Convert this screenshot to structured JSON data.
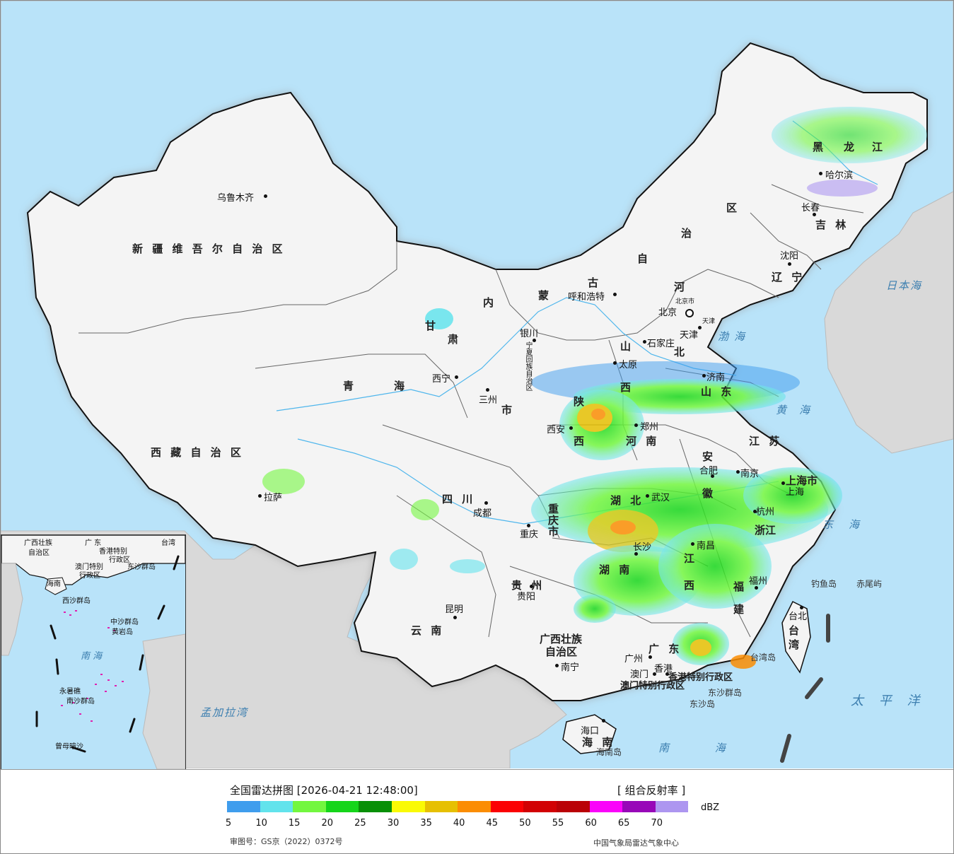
{
  "map": {
    "provinces": [
      {
        "id": "xinjiang",
        "text": "新 疆 维 吾 尔 自 治 区"
      },
      {
        "id": "xizang",
        "text": "西 藏 自 治 区"
      },
      {
        "id": "qinghai-1",
        "text": "青"
      },
      {
        "id": "qinghai-2",
        "text": "海"
      },
      {
        "id": "gansu-1",
        "text": "甘"
      },
      {
        "id": "gansu-2",
        "text": "肃"
      },
      {
        "id": "neimeng-1",
        "text": "内"
      },
      {
        "id": "neimeng-2",
        "text": "蒙"
      },
      {
        "id": "neimeng-3",
        "text": "古"
      },
      {
        "id": "neimeng-4",
        "text": "自"
      },
      {
        "id": "neimeng-5",
        "text": "治"
      },
      {
        "id": "neimeng-6",
        "text": "区"
      },
      {
        "id": "heilongjiang-1",
        "text": "黑"
      },
      {
        "id": "heilongjiang-2",
        "text": "龙"
      },
      {
        "id": "heilongjiang-3",
        "text": "江"
      },
      {
        "id": "jilin",
        "text": "吉 林"
      },
      {
        "id": "liaoning",
        "text": "辽 宁"
      },
      {
        "id": "hebei-1",
        "text": "河"
      },
      {
        "id": "hebei-2",
        "text": "北"
      },
      {
        "id": "shanxi-1",
        "text": "山"
      },
      {
        "id": "shanxi-2",
        "text": "西"
      },
      {
        "id": "shandong",
        "text": "山 东"
      },
      {
        "id": "henan",
        "text": "河 南"
      },
      {
        "id": "shaanxi-1",
        "text": "陕"
      },
      {
        "id": "shaanxi-2",
        "text": "西"
      },
      {
        "id": "sichuan",
        "text": "四 川"
      },
      {
        "id": "hubei",
        "text": "湖 北"
      },
      {
        "id": "hunan",
        "text": "湖 南"
      },
      {
        "id": "anhui-1",
        "text": "安"
      },
      {
        "id": "anhui-2",
        "text": "徽"
      },
      {
        "id": "jiangsu",
        "text": "江 苏"
      },
      {
        "id": "shanghai",
        "text": "上海市"
      },
      {
        "id": "zhejiang",
        "text": "浙江"
      },
      {
        "id": "jiangxi-1",
        "text": "江"
      },
      {
        "id": "jiangxi-2",
        "text": "西"
      },
      {
        "id": "fujian-1",
        "text": "福"
      },
      {
        "id": "fujian-2",
        "text": "建"
      },
      {
        "id": "guizhou",
        "text": "贵 州"
      },
      {
        "id": "yunnan",
        "text": "云 南"
      },
      {
        "id": "guangxi-1",
        "text": "广西壮族"
      },
      {
        "id": "guangxi-2",
        "text": "自治区"
      },
      {
        "id": "guangdong",
        "text": "广 东"
      },
      {
        "id": "chongqing-1",
        "text": "重"
      },
      {
        "id": "chongqing-2",
        "text": "庆"
      },
      {
        "id": "chongqing-3",
        "text": "市"
      },
      {
        "id": "ningxia",
        "text": "宁夏回族自治区"
      },
      {
        "id": "gansu-shi",
        "text": "市"
      },
      {
        "id": "hainan",
        "text": "海 南"
      },
      {
        "id": "taiwan-1",
        "text": "台"
      },
      {
        "id": "taiwan-2",
        "text": "湾"
      },
      {
        "id": "hk",
        "text": "香港特别行政区"
      },
      {
        "id": "macao",
        "text": "澳门特别行政区"
      },
      {
        "id": "beijing-shi",
        "text": "北京市"
      },
      {
        "id": "tianjin-shi",
        "text": "天津"
      }
    ],
    "cities": [
      {
        "id": "urumqi",
        "text": "乌鲁木齐"
      },
      {
        "id": "lhasa",
        "text": "拉萨"
      },
      {
        "id": "xining",
        "text": "西宁"
      },
      {
        "id": "lanzhou",
        "text": "三州"
      },
      {
        "id": "yinchuan",
        "text": "银川"
      },
      {
        "id": "huhehaote",
        "text": "呼和浩特"
      },
      {
        "id": "harbin",
        "text": "哈尔滨"
      },
      {
        "id": "changchun",
        "text": "长春"
      },
      {
        "id": "shenyang",
        "text": "沈阳"
      },
      {
        "id": "beijing",
        "text": "北京"
      },
      {
        "id": "tianjin",
        "text": "天津"
      },
      {
        "id": "shijiazhuang",
        "text": "石家庄"
      },
      {
        "id": "taiyuan",
        "text": "太原"
      },
      {
        "id": "jinan",
        "text": "济南"
      },
      {
        "id": "zhengzhou",
        "text": "郑州"
      },
      {
        "id": "xian",
        "text": "西安"
      },
      {
        "id": "chengdu",
        "text": "成都"
      },
      {
        "id": "chongqing",
        "text": "重庆"
      },
      {
        "id": "wuhan",
        "text": "武汉"
      },
      {
        "id": "hefei",
        "text": "合肥"
      },
      {
        "id": "nanjing",
        "text": "南京"
      },
      {
        "id": "shanghai-c",
        "text": "上海"
      },
      {
        "id": "hangzhou",
        "text": "杭州"
      },
      {
        "id": "nanchang",
        "text": "南昌"
      },
      {
        "id": "changsha",
        "text": "长沙"
      },
      {
        "id": "fuzhou",
        "text": "福州"
      },
      {
        "id": "guiyang",
        "text": "贵阳"
      },
      {
        "id": "kunming",
        "text": "昆明"
      },
      {
        "id": "nanning",
        "text": "南宁"
      },
      {
        "id": "guangzhou",
        "text": "广州"
      },
      {
        "id": "hongkong",
        "text": "香港"
      },
      {
        "id": "macau",
        "text": "澳门"
      },
      {
        "id": "haikou",
        "text": "海口"
      },
      {
        "id": "taibei",
        "text": "台北"
      }
    ],
    "seas": [
      {
        "id": "ribenhai",
        "text": "日本海"
      },
      {
        "id": "bohai",
        "text": "渤海"
      },
      {
        "id": "huanghai",
        "text": "黄海"
      },
      {
        "id": "donghai",
        "text": "东海"
      },
      {
        "id": "taipingyang",
        "text": "太 平 洋"
      },
      {
        "id": "nanhai",
        "text": "南 海"
      },
      {
        "id": "mengjialawan",
        "text": "孟加拉湾"
      }
    ],
    "islands": [
      {
        "id": "diaoyudao",
        "text": "钓鱼岛"
      },
      {
        "id": "chiweiyu",
        "text": "赤尾屿"
      },
      {
        "id": "taiwandao",
        "text": "台湾岛"
      },
      {
        "id": "dongshaqundao",
        "text": "东沙群岛"
      },
      {
        "id": "dongshadao",
        "text": "东沙岛"
      },
      {
        "id": "hainandao",
        "text": "海南岛"
      }
    ],
    "inset": {
      "labels": [
        {
          "id": "in-guangxi",
          "text": "广西壮族"
        },
        {
          "id": "in-guangxi2",
          "text": "自治区"
        },
        {
          "id": "in-guangdong",
          "text": "广 东"
        },
        {
          "id": "in-taiwan",
          "text": "台湾"
        },
        {
          "id": "in-hk",
          "text": "香港特别"
        },
        {
          "id": "in-hk2",
          "text": "行政区"
        },
        {
          "id": "in-macao",
          "text": "澳门特别"
        },
        {
          "id": "in-macao2",
          "text": "行政区"
        },
        {
          "id": "in-dongsha",
          "text": "东沙群岛"
        },
        {
          "id": "in-hainan",
          "text": "海南"
        },
        {
          "id": "in-xisha",
          "text": "西沙群岛"
        },
        {
          "id": "in-zhongsha",
          "text": "中沙群岛"
        },
        {
          "id": "in-huangyan",
          "text": "黄岩岛"
        },
        {
          "id": "in-nanhai",
          "text": "南 海"
        },
        {
          "id": "in-nansha",
          "text": "南沙群岛"
        },
        {
          "id": "in-yongshu",
          "text": "永暑礁"
        },
        {
          "id": "in-zengmu",
          "text": "曾母暗沙"
        }
      ]
    }
  },
  "legend": {
    "title": "全国雷达拼图 [2026-04-21 12:48:00]",
    "product": "[ 组合反射率 ]",
    "unit": "dBZ",
    "colors": [
      "#3f9ded",
      "#62e3ec",
      "#73f73f",
      "#15d51a",
      "#089006",
      "#fafa05",
      "#e6c002",
      "#fb8d03",
      "#fb0104",
      "#d20104",
      "#ba0106",
      "#fa03fa",
      "#9807b8",
      "#ad96f0"
    ],
    "ticks": [
      "5",
      "10",
      "15",
      "20",
      "25",
      "30",
      "35",
      "40",
      "45",
      "50",
      "55",
      "60",
      "65",
      "70"
    ],
    "approval": "审图号：GS京（2022）0372号",
    "source": "中国气象局雷达气象中心"
  }
}
